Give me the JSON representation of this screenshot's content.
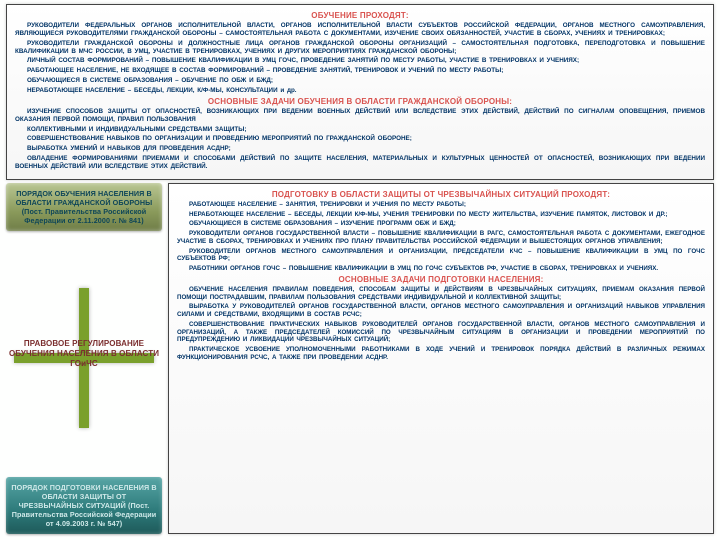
{
  "top": {
    "h1": "ОБУЧЕНИЕ ПРОХОДЯТ:",
    "p1": "РУКОВОДИТЕЛИ ФЕДЕРАЛЬНЫХ ОРГАНОВ ИСПОЛНИТЕЛЬНОЙ ВЛАСТИ, ОРГАНОВ ИСПОЛНИТЕЛЬНОЙ ВЛАСТИ СУБЪЕКТОВ РОССИЙСКОЙ ФЕДЕРАЦИИ, ОРГАНОВ МЕСТНОГО САМОУПРАВЛЕНИЯ, ЯВЛЯЮЩИЕСЯ РУКОВОДИТЕЛЯМИ ГРАЖДАНСКОЙ ОБОРОНЫ – САМОСТОЯТЕЛЬНАЯ РАБОТА С ДОКУМЕНТАМИ, ИЗУЧЕНИЕ СВОИХ ОБЯЗАННОСТЕЙ, УЧАСТИЕ В СБОРАХ, УЧЕНИЯХ И ТРЕНИРОВКАХ;",
    "p2": "РУКОВОДИТЕЛИ ГРАЖДАНСКОЙ ОБОРОНЫ И ДОЛЖНОСТНЫЕ ЛИЦА ОРГАНОВ ГРАЖДАНСКОЙ ОБОРОНЫ ОРГАНИЗАЦИЙ – САМОСТОЯТЕЛЬНАЯ ПОДГОТОВКА, ПЕРЕПОДГОТОВКА И ПОВЫШЕНИЕ КВАЛИФИКАЦИИ В МЧС РОССИИ, В УМЦ, УЧАСТИЕ В ТРЕНИРОВКАХ, УЧЕНИЯХ И ДРУГИХ МЕРОПРИЯТИЯХ ГРАЖДАНСКОЙ ОБОРОНЫ;",
    "p3": "ЛИЧНЫЙ СОСТАВ ФОРМИРОВАНИЙ – ПОВЫШЕНИЕ КВАЛИФИКАЦИИ В УМЦ ГОЧС, ПРОВЕДЕНИЕ ЗАНЯТИЙ ПО МЕСТУ РАБОТЫ, УЧАСТИЕ В ТРЕНИРОВКАХ И УЧЕНИЯХ;",
    "p4": "РАБОТАЮЩЕЕ НАСЕЛЕНИЕ, НЕ ВХОДЯЩЕЕ В СОСТАВ ФОРМИРОВАНИЙ – ПРОВЕДЕНИЕ ЗАНЯТИЙ, ТРЕНИРОВОК И УЧЕНИЙ ПО МЕСТУ РАБОТЫ;",
    "p5": "ОБУЧАЮЩИЕСЯ В СИСТЕМЕ ОБРАЗОВАНИЯ – ОБУЧЕНИЕ ПО ОБЖ И БЖД;",
    "p6": "НЕРАБОТАЮЩЕЕ НАСЕЛЕНИЕ – БЕСЕДЫ, ЛЕКЦИИ, К/Ф-МЫ, КОНСУЛЬТАЦИИ и др.",
    "h2": "ОСНОВНЫЕ ЗАДАЧИ ОБУЧЕНИЯ В ОБЛАСТИ ГРАЖДАНСКОЙ ОБОРОНЫ:",
    "p7": "ИЗУЧЕНИЕ СПОСОБОВ ЗАЩИТЫ ОТ ОПАСНОСТЕЙ, ВОЗНИКАЮЩИХ ПРИ ВЕДЕНИИ ВОЕННЫХ ДЕЙСТВИЙ ИЛИ ВСЛЕДСТВИЕ ЭТИХ ДЕЙСТВИЙ, ДЕЙСТВИЙ ПО СИГНАЛАМ ОПОВЕЩЕНИЯ, ПРИЕМОВ ОКАЗАНИЯ ПЕРВОЙ ПОМОЩИ, ПРАВИЛ ПОЛЬЗОВАНИЯ",
    "p8": "КОЛЛЕКТИВНЫМИ И ИНДИВИДУАЛЬНЫМИ СРЕДСТВАМИ ЗАЩИТЫ;",
    "p9": "СОВЕРШЕНСТВОВАНИЕ НАВЫКОВ ПО ОРГАНИЗАЦИИ И ПРОВЕДЕНИЮ МЕРОПРИЯТИЙ ПО ГРАЖДАНСКОЙ ОБОРОНЕ;",
    "p10": "ВЫРАБОТКА УМЕНИЙ И НАВЫКОВ ДЛЯ ПРОВЕДЕНИЯ АСДНР;",
    "p11": "ОВЛАДЕНИЕ ФОРМИРОВАНИЯМИ ПРИЕМАМИ И СПОСОБАМИ ДЕЙСТВИЙ ПО ЗАЩИТЕ НАСЕЛЕНИЯ, МАТЕРИАЛЬНЫХ И КУЛЬТУРНЫХ ЦЕННОСТЕЙ ОТ ОПАСНОСТЕЙ, ВОЗНИКАЮЩИХ ПРИ ВЕДЕНИИ ВОЕННЫХ ДЕЙСТВИЙ ИЛИ ВСЛЕДСТВИЕ ЭТИХ ДЕЙСТВИЙ."
  },
  "sidebar": {
    "box1": "ПОРЯДОК ОБУЧЕНИЯ НАСЕЛЕНИЯ В ОБЛАСТИ ГРАЖДАНСКОЙ ОБОРОНЫ (Пост. Правительства Российской Федерации от 2.11.2000 г. № 841)",
    "mid": "ПРАВОВОЕ РЕГУЛИРОВАНИЕ ОБУЧЕНИЯ НАСЕЛЕНИЯ В ОБЛАСТИ ГОиЧС",
    "box2": "ПОРЯДОК ПОДГОТОВКИ НАСЕЛЕНИЯ В ОБЛАСТИ ЗАЩИТЫ ОТ ЧРЕЗВЫЧАЙНЫХ СИТУАЦИЙ (Пост. Правительства Российской Федерации от 4.09.2003 г. № 547)"
  },
  "right": {
    "h1": "ПОДГОТОВКУ В ОБЛАСТИ ЗАЩИТЫ ОТ ЧРЕЗВЫЧАЙНЫХ СИТУАЦИЙ ПРОХОДЯТ:",
    "p1": "РАБОТАЮЩЕЕ НАСЕЛЕНИЕ – ЗАНЯТИЯ, ТРЕНИРОВКИ И УЧЕНИЯ ПО МЕСТУ РАБОТЫ;",
    "p2": "НЕРАБОТАЮЩЕЕ НАСЕЛЕНИЕ – БЕСЕДЫ, ЛЕКЦИИ К/Ф-МЫ, УЧЕНИЯ ТРЕНИРОВКИ ПО МЕСТУ ЖИТЕЛЬСТВА, ИЗУЧЕНИЕ ПАМЯТОК, ЛИСТОВОК И ДР.;",
    "p3": "ОБУЧАЮЩИЕСЯ В СИСТЕМЕ ОБРАЗОВАНИЯ – ИЗУЧЕНИЕ ПРОГРАММ ОБЖ И БЖД;",
    "p4": "РУКОВОДИТЕЛИ ОРГАНОВ ГОСУДАРСТВЕННОЙ ВЛАСТИ – ПОВЫШЕНИЕ КВАЛИФИКАЦИИ В РАГС, САМОСТОЯТЕЛЬНАЯ РАБОТА С ДОКУМЕНТАМИ, ЕЖЕГОДНОЕ УЧАСТИЕ В СБОРАХ, ТРЕНИРОВКАХ И УЧЕНИЯХ ПРО ПЛАНУ ПРАВИТЕЛЬСТВА РОССИЙСКОЙ ФЕДЕРАЦИИ И ВЫШЕСТОЯЩИХ ОРГАНОВ УПРАВЛЕНИЯ;",
    "p5": "РУКОВОДИТЕЛИ ОРГАНОВ МЕСТНОГО САМОУПРАВЛЕНИЯ И ОРГАНИЗАЦИИ, ПРЕДСЕДАТЕЛИ КЧС – ПОВЫШЕНИЕ КВАЛИФИКАЦИИ В УМЦ ПО ГОЧС СУБЪЕКТОВ РФ;",
    "p6": "РАБОТНИКИ ОРГАНОВ ГОЧС – ПОВЫШЕНИЕ КВАЛИФИКАЦИИ В УМЦ ПО ГОЧС СУБЪЕКТОВ РФ, УЧАСТИЕ В СБОРАХ, ТРЕНИРОВКАХ И УЧЕНИЯХ.",
    "h2": "ОСНОВНЫЕ ЗАДАЧИ ПОДГОТОВКИ НАСЕЛЕНИЯ:",
    "p7": "ОБУЧЕНИЕ НАСЕЛЕНИЯ ПРАВИЛАМ ПОВЕДЕНИЯ, СПОСОБАМ ЗАЩИТЫ И ДЕЙСТВИЯМ В ЧРЕЗВЫЧАЙНЫХ СИТУАЦИЯХ, ПРИЕМАМ ОКАЗАНИЯ ПЕРВОЙ ПОМОЩИ ПОСТРАДАВШИМ, ПРАВИЛАМ ПОЛЬЗОВАНИЯ СРЕДСТВАМИ ИНДИВИДУАЛЬНОЙ И КОЛЛЕКТИВНОЙ ЗАЩИТЫ;",
    "p8": "ВЫРАБОТКА У РУКОВОДИТЕЛЕЙ ОРГАНОВ ГОСУДАРСТВЕННОЙ ВЛАСТИ, ОРГАНОВ МЕСТНОГО САМОУПРАВЛЕНИЯ И ОРГАНИЗАЦИЙ НАВЫКОВ УПРАВЛЕНИЯ СИЛАМИ И СРЕДСТВАМИ, ВХОДЯЩИМИ В СОСТАВ РСЧС;",
    "p9": "СОВЕРШЕНСТВОВАНИЕ ПРАКТИЧЕСКИХ НАВЫКОВ РУКОВОДИТЕЛЕЙ ОРГАНОВ ГОСУДАРСТВЕННОЙ ВЛАСТИ, ОРГАНОВ МЕСТНОГО САМОУПРАВЛЕНИЯ И ОРГАНИЗАЦИЙ, А ТАКЖЕ ПРЕДСЕДАТЕЛЕЙ КОМИССИЙ ПО ЧРЕЗВЫЧАЙНЫМ СИТУАЦИЯМ В ОРГАНИЗАЦИИ И ПРОВЕДЕНИИ МЕРОПРИЯТИЙ ПО ПРЕДУПРЕЖДЕНИЮ И ЛИКВИДАЦИИ ЧРЕЗВЫЧАЙНЫХ СИТУАЦИЙ;",
    "p10": "ПРАКТИЧЕСКОЕ УСВОЕНИЕ УПОЛНОМОЧЕННЫМИ РАБОТНИКАМИ В ХОДЕ УЧЕНИЙ И ТРЕНИРОВОК ПОРЯДКА ДЕЙСТВИЙ В РАЗЛИЧНЫХ РЕЖИМАХ ФУНКЦИОНИРОВАНИЯ РСЧС, А ТАКЖЕ ПРИ ПРОВЕДЕНИИ АСДНР."
  },
  "colors": {
    "ink": "#003366",
    "accent": "#d9534f",
    "olive": "#8a9a5b",
    "teal": "#2d7a7a"
  },
  "fonts": {
    "base_family": "Arial",
    "body_pt": 6.3,
    "heading_pt": 8
  }
}
